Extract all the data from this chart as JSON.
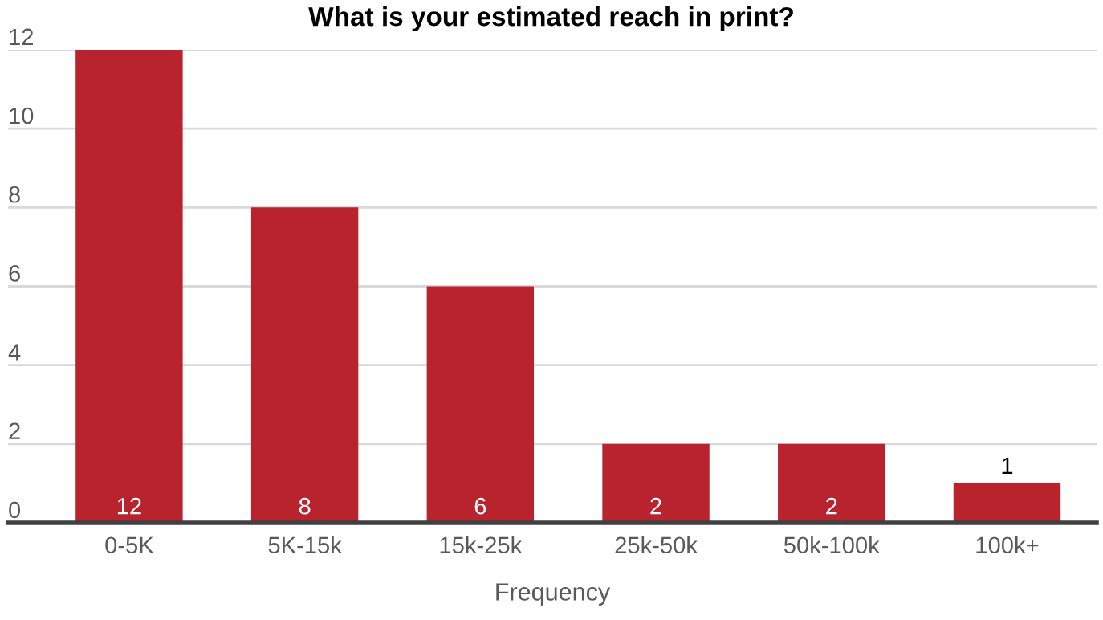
{
  "chart_data": {
    "type": "bar",
    "title": "What is your estimated reach in print?",
    "xlabel": "Frequency",
    "categories": [
      "0-5K",
      "5K-15k",
      "15k-25k",
      "25k-50k",
      "50k-100k",
      "100k+"
    ],
    "values": [
      12,
      8,
      6,
      2,
      2,
      1
    ],
    "color": "#b8232d",
    "ylim": [
      0,
      12
    ],
    "yticks": [
      0,
      2,
      4,
      6,
      8,
      10,
      12
    ],
    "grid": "y",
    "data_labels": true
  }
}
